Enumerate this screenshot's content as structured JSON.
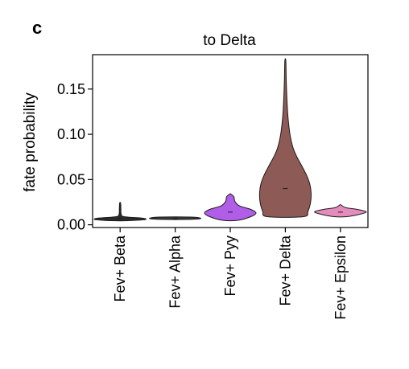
{
  "panel_label": "c",
  "chart_data": {
    "type": "violin",
    "title": "to Delta",
    "xlabel": "",
    "ylabel": "fate probability",
    "ylim": [
      -0.003,
      0.188
    ],
    "yticks": [
      0.0,
      0.05,
      0.1,
      0.15
    ],
    "ytick_labels": [
      "0.00",
      "0.05",
      "0.10",
      "0.15"
    ],
    "grid": false,
    "categories": [
      "Fev+ Beta",
      "Fev+ Alpha",
      "Fev+ Pyy",
      "Fev+ Delta",
      "Fev+ Epsilon"
    ],
    "series": [
      {
        "category": "Fev+ Beta",
        "color": "#2b2b2b",
        "min": 0.0045,
        "max": 0.024,
        "median": 0.007,
        "profile": [
          [
            0.0045,
            0.3
          ],
          [
            0.0055,
            0.9
          ],
          [
            0.0065,
            1.0
          ],
          [
            0.0075,
            0.8
          ],
          [
            0.009,
            0.15
          ],
          [
            0.012,
            0.04
          ],
          [
            0.018,
            0.03
          ],
          [
            0.024,
            0.0
          ]
        ]
      },
      {
        "category": "Fev+ Alpha",
        "color": "#3a3a3a",
        "min": 0.006,
        "max": 0.0085,
        "median": 0.007,
        "profile": [
          [
            0.006,
            0.6
          ],
          [
            0.007,
            1.0
          ],
          [
            0.0085,
            0.6
          ]
        ]
      },
      {
        "category": "Fev+ Pyy",
        "color": "#b05ee8",
        "min": 0.005,
        "max": 0.034,
        "median": 0.014,
        "profile": [
          [
            0.005,
            0.3
          ],
          [
            0.009,
            0.8
          ],
          [
            0.013,
            1.0
          ],
          [
            0.017,
            0.8
          ],
          [
            0.021,
            0.35
          ],
          [
            0.026,
            0.18
          ],
          [
            0.031,
            0.14
          ],
          [
            0.034,
            0.0
          ]
        ]
      },
      {
        "category": "Fev+ Delta",
        "color": "#8e5a56",
        "min": 0.009,
        "max": 0.181,
        "median": 0.04,
        "profile": [
          [
            0.009,
            0.7
          ],
          [
            0.015,
            0.88
          ],
          [
            0.025,
            0.98
          ],
          [
            0.035,
            1.0
          ],
          [
            0.045,
            0.95
          ],
          [
            0.055,
            0.82
          ],
          [
            0.065,
            0.64
          ],
          [
            0.075,
            0.45
          ],
          [
            0.085,
            0.3
          ],
          [
            0.1,
            0.18
          ],
          [
            0.12,
            0.1
          ],
          [
            0.14,
            0.06
          ],
          [
            0.16,
            0.035
          ],
          [
            0.181,
            0.0
          ]
        ]
      },
      {
        "category": "Fev+ Epsilon",
        "color": "#e48dbd",
        "min": 0.009,
        "max": 0.022,
        "median": 0.014,
        "profile": [
          [
            0.009,
            0.25
          ],
          [
            0.012,
            0.8
          ],
          [
            0.0145,
            1.0
          ],
          [
            0.017,
            0.65
          ],
          [
            0.019,
            0.2
          ],
          [
            0.022,
            0.0
          ]
        ]
      }
    ]
  }
}
